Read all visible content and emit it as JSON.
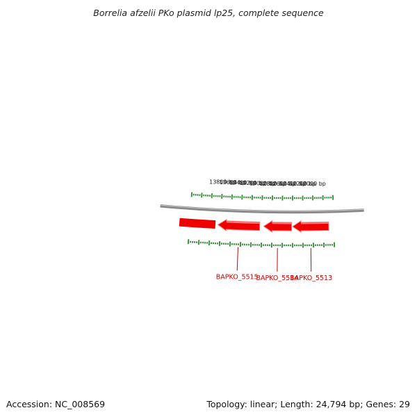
{
  "title": "Borrelia afzelii PKo plasmid lp25, complete sequence",
  "footer": {
    "accession": "Accession: NC_008569",
    "summary": "Topology: linear; Length: 24,794 bp; Genes: 29"
  },
  "map": {
    "topology": "linear",
    "length_bp": 24794,
    "gene_count": 29,
    "colors": {
      "backbone": "#8a8a8a",
      "gene": "#ee0000",
      "gene_light": "#ff7a7a",
      "tick": "#2e8b2e",
      "label": "#cc0000"
    },
    "scale_labels": [
      "13800 bp",
      "13600 bp",
      "13400 bp",
      "13200 bp",
      "13000 bp",
      "12800 bp",
      "12600 bp",
      "12400 bp",
      "12200 bp",
      "12000 bp"
    ],
    "genes": [
      {
        "name": "BAPKO_5515",
        "start": 13040,
        "end": 13850,
        "strand": "-"
      },
      {
        "name": "BAPKO_5514",
        "start": 12420,
        "end": 12960,
        "strand": "-"
      },
      {
        "name": "BAPKO_5513",
        "start": 11700,
        "end": 12400,
        "strand": "-"
      }
    ]
  }
}
